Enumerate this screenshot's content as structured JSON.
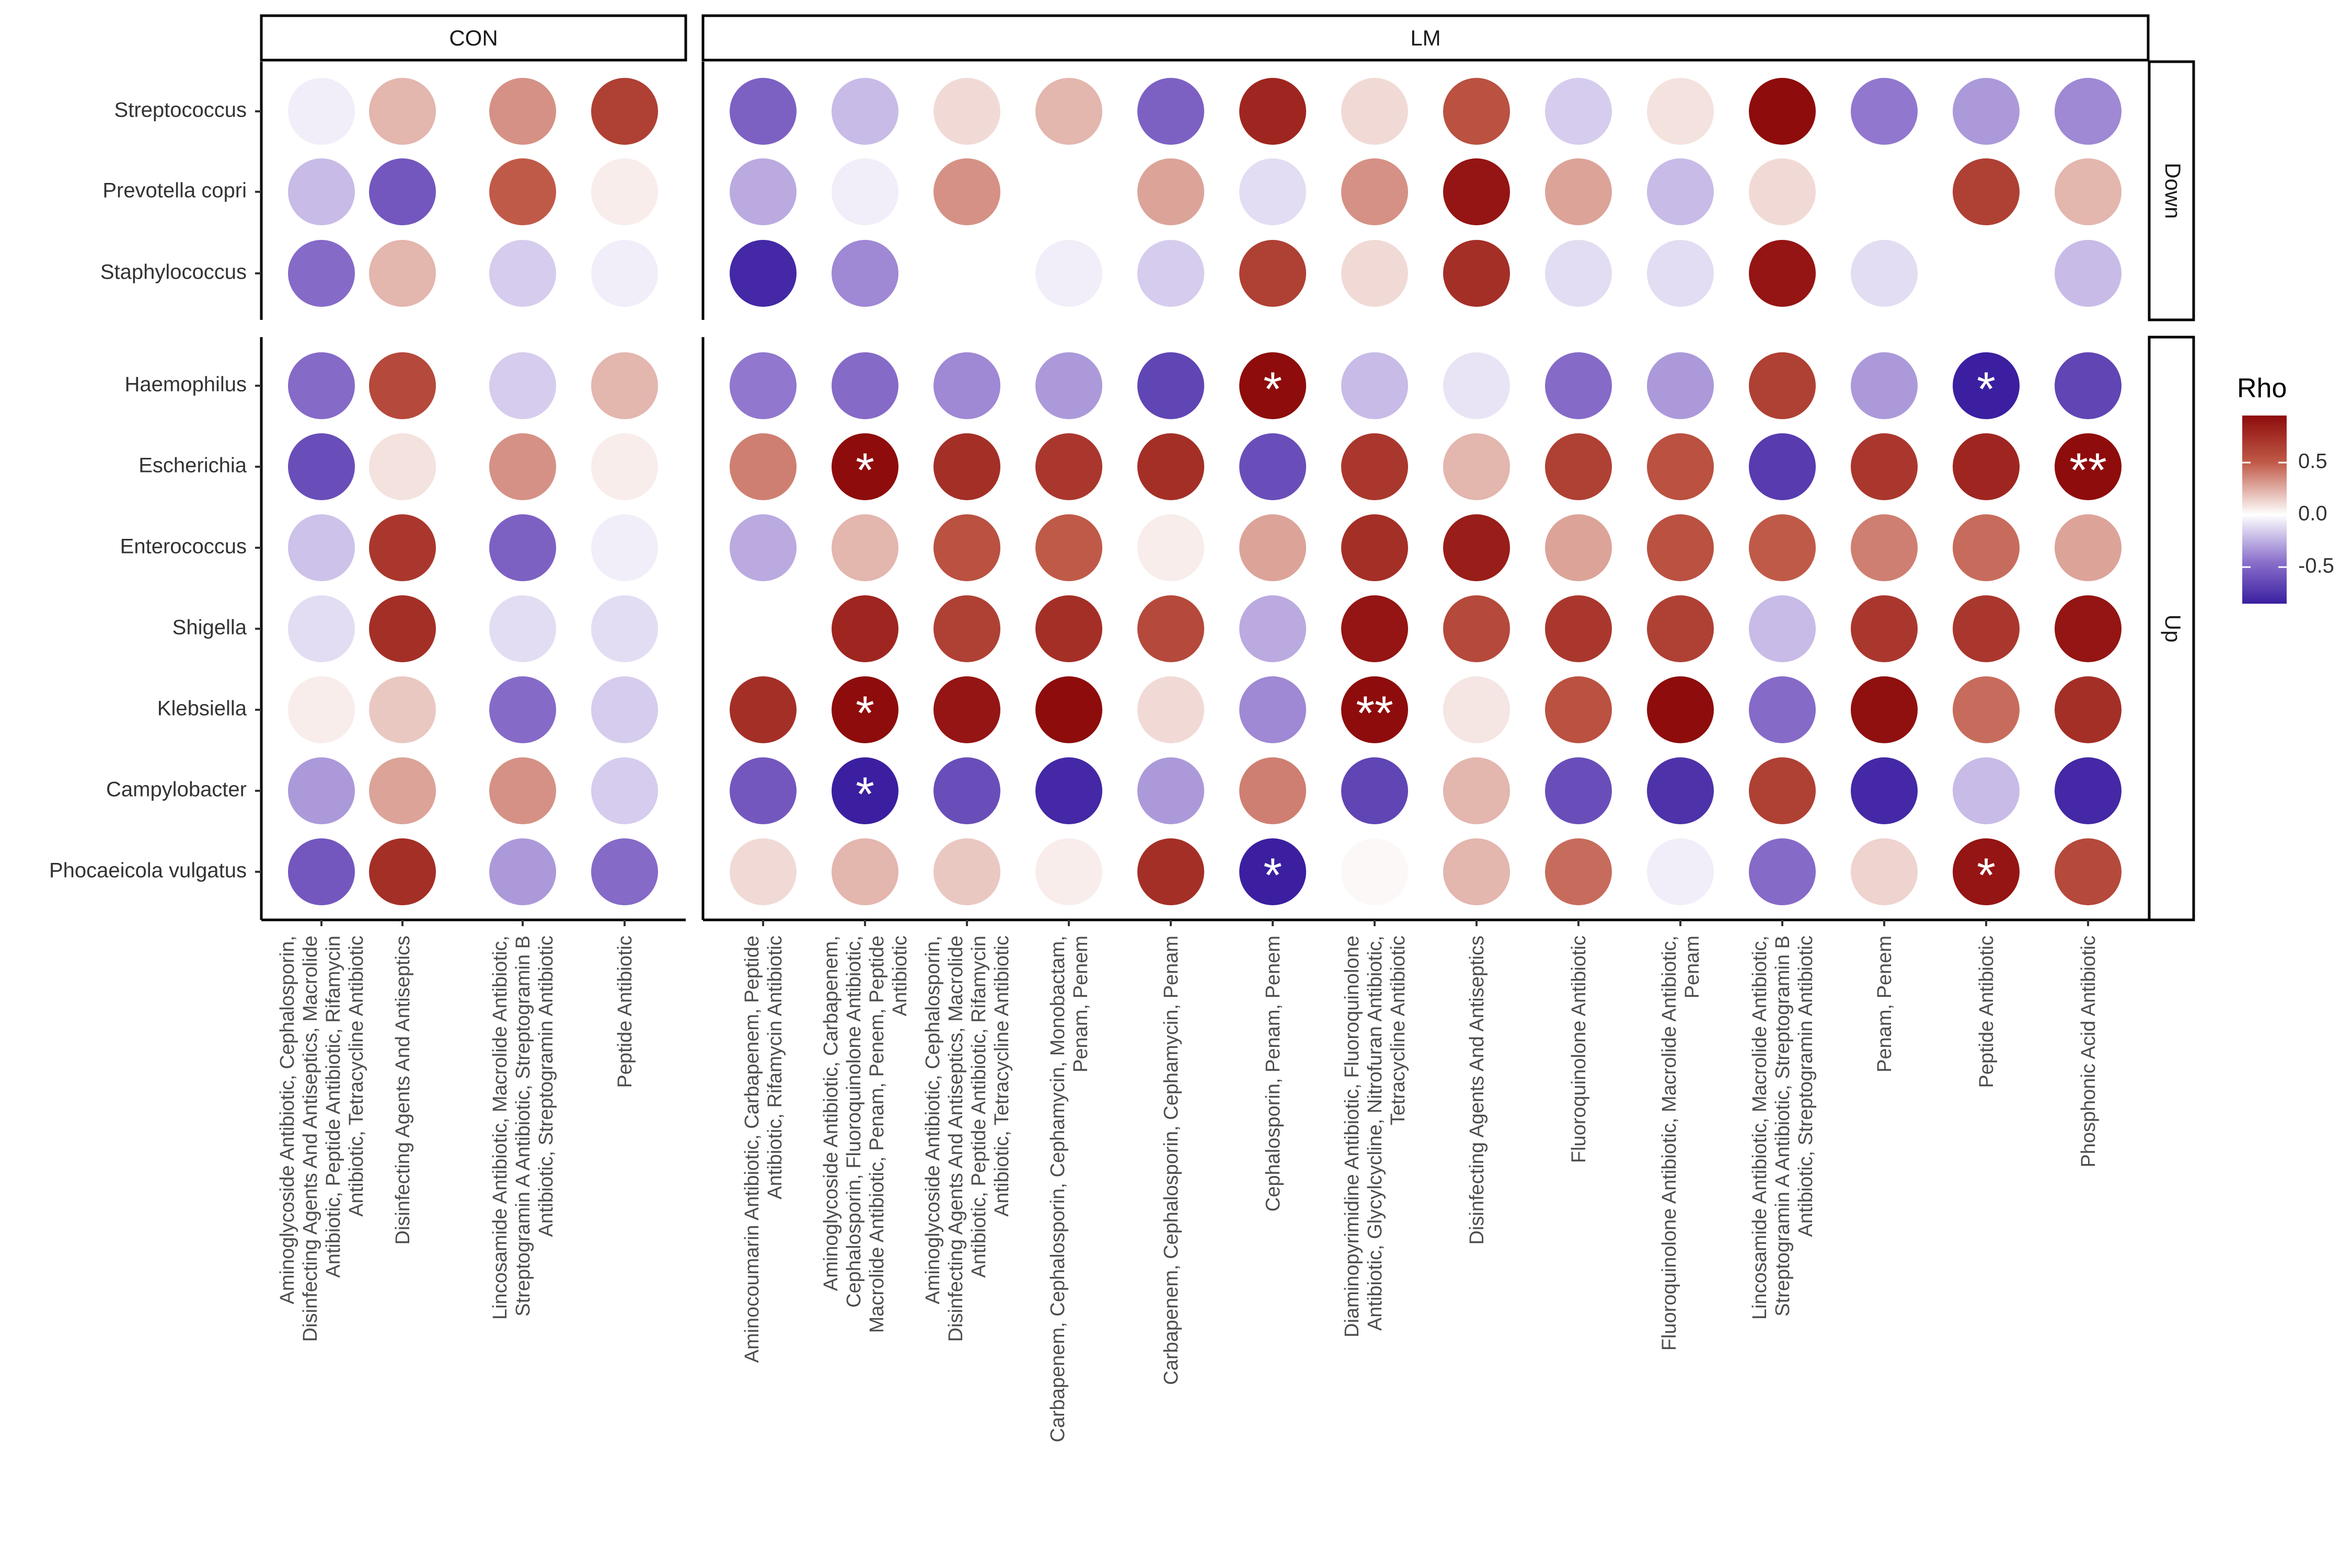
{
  "chart_data": {
    "type": "heatmap",
    "title": "",
    "legend": {
      "title": "Rho",
      "ticks": [
        0.5,
        0.0,
        -0.5
      ],
      "tick_labels": [
        "0.5",
        "0.0",
        "-0.5"
      ],
      "range": [
        -0.85,
        0.95
      ],
      "placement": "right"
    },
    "color_scale": {
      "low": "#3b1fa0",
      "mid": "#ffffff",
      "high": "#8e0c0c"
    },
    "facets_x": [
      {
        "label": "CON",
        "columns": [
          "Aminoglycoside Antibiotic, Cephalosporin,\nDisinfecting Agents And Antiseptics, Macrolide\nAntibiotic, Peptide Antibiotic, Rifamycin\nAntibiotic, Tetracycline Antibiotic",
          "Disinfecting Agents And Antiseptics",
          "Lincosamide Antibiotic, Macrolide Antibiotic,\nStreptogramin A Antibiotic, Streptogramin B\nAntibiotic, Streptogramin Antibiotic",
          "Peptide Antibiotic"
        ]
      },
      {
        "label": "LM",
        "columns": [
          "Aminocoumarin Antibiotic, Carbapenem, Peptide\nAntibiotic, Rifamycin Antibiotic",
          "Aminoglycoside Antibiotic, Carbapenem,\nCephalosporin, Fluoroquinolone Antibiotic,\nMacrolide Antibiotic, Penam, Penem, Peptide\nAntibiotic",
          "Aminoglycoside Antibiotic, Cephalosporin,\nDisinfecting Agents And Antiseptics, Macrolide\nAntibiotic, Peptide Antibiotic, Rifamycin\nAntibiotic, Tetracycline Antibiotic",
          "Carbapenem, Cephalosporin, Cephamycin, Monobactam,\nPenam, Penem",
          "Carbapenem, Cephalosporin, Cephamycin, Penam",
          "Cephalosporin, Penam, Penem",
          "Diaminopyrimidine Antibiotic, Fluoroquinolone\nAntibiotic, Glycylcycline, Nitrofuran Antibiotic,\nTetracycline Antibiotic",
          "Disinfecting Agents And Antiseptics",
          "Fluoroquinolone Antibiotic",
          "Fluoroquinolone Antibiotic, Macrolide Antibiotic,\nPenam",
          "Lincosamide Antibiotic, Macrolide Antibiotic,\nStreptogramin A Antibiotic, Streptogramin B\nAntibiotic, Streptogramin Antibiotic",
          "Penam, Penem",
          "Peptide Antibiotic",
          "Phosphonic Acid Antibiotic"
        ]
      }
    ],
    "facets_y": [
      {
        "label": "Down",
        "rows": [
          "Streptococcus",
          "Prevotella copri",
          "Staphylococcus"
        ]
      },
      {
        "label": "Up",
        "rows": [
          "Haemophilus",
          "Escherichia",
          "Enterococcus",
          "Shigella",
          "Klebsiella",
          "Campylobacter",
          "Phocaeicola vulgatus"
        ]
      }
    ],
    "values": {
      "CON": [
        [
          -0.05,
          0.2,
          0.3,
          0.6
        ],
        [
          -0.2,
          -0.55,
          0.45,
          0.05
        ],
        [
          -0.45,
          0.2,
          -0.15,
          -0.05
        ],
        [
          -0.45,
          0.55,
          -0.15,
          0.2
        ],
        [
          -0.6,
          0.08,
          0.3,
          0.05
        ],
        [
          -0.18,
          0.65,
          -0.5,
          -0.05
        ],
        [
          -0.1,
          0.7,
          -0.1,
          -0.1
        ],
        [
          0.05,
          0.15,
          -0.45,
          -0.15
        ],
        [
          -0.3,
          0.25,
          0.3,
          -0.15
        ],
        [
          -0.55,
          0.7,
          -0.3,
          -0.45
        ]
      ],
      "LM": [
        [
          -0.5,
          -0.2,
          0.1,
          0.2,
          -0.5,
          0.75,
          0.1,
          0.5,
          -0.15,
          0.08,
          0.9,
          -0.4,
          -0.3,
          -0.35
        ],
        [
          -0.25,
          -0.05,
          0.3,
          0.0,
          0.25,
          -0.1,
          0.3,
          0.85,
          0.25,
          -0.2,
          0.1,
          0.0,
          0.6,
          0.2
        ],
        [
          -0.8,
          -0.35,
          0.0,
          -0.05,
          -0.15,
          0.6,
          0.1,
          0.7,
          -0.1,
          -0.1,
          0.85,
          -0.1,
          0.0,
          -0.2
        ],
        [
          -0.4,
          -0.45,
          -0.35,
          -0.3,
          -0.65,
          0.9,
          -0.2,
          -0.08,
          -0.45,
          -0.3,
          0.6,
          -0.3,
          -0.85,
          -0.65
        ],
        [
          0.35,
          0.92,
          0.7,
          0.65,
          0.7,
          -0.6,
          0.65,
          0.2,
          0.6,
          0.5,
          -0.7,
          0.65,
          0.75,
          0.95
        ],
        [
          -0.25,
          0.2,
          0.5,
          0.45,
          0.05,
          0.25,
          0.7,
          0.8,
          0.25,
          0.5,
          0.45,
          0.35,
          0.4,
          0.25
        ],
        [
          0.0,
          0.75,
          0.6,
          0.7,
          0.55,
          -0.25,
          0.85,
          0.55,
          0.65,
          0.6,
          -0.2,
          0.65,
          0.65,
          0.85
        ],
        [
          0.7,
          0.9,
          0.85,
          0.9,
          0.1,
          -0.35,
          0.92,
          0.07,
          0.5,
          0.9,
          -0.45,
          0.88,
          0.4,
          0.7
        ],
        [
          -0.55,
          -0.85,
          -0.6,
          -0.8,
          -0.3,
          0.35,
          -0.65,
          0.2,
          -0.6,
          -0.75,
          0.6,
          -0.8,
          -0.2,
          -0.8
        ],
        [
          0.1,
          0.2,
          0.15,
          0.05,
          0.7,
          -0.85,
          0.02,
          0.2,
          0.4,
          -0.05,
          -0.45,
          0.12,
          0.85,
          0.55
        ]
      ]
    },
    "significance": {
      "LM": [
        [
          "",
          "",
          "",
          "",
          "",
          "",
          "",
          "",
          "",
          "",
          "",
          "",
          "",
          ""
        ],
        [
          "",
          "",
          "",
          "",
          "",
          "",
          "",
          "",
          "",
          "",
          "",
          "",
          "",
          ""
        ],
        [
          "",
          "",
          "",
          "",
          "",
          "",
          "",
          "",
          "",
          "",
          "",
          "",
          "",
          ""
        ],
        [
          "",
          "",
          "",
          "",
          "",
          "*",
          "",
          "",
          "",
          "",
          "",
          "",
          "*",
          ""
        ],
        [
          "",
          "*",
          "",
          "",
          "",
          "",
          "",
          "",
          "",
          "",
          "",
          "",
          "",
          "**"
        ],
        [
          "",
          "",
          "",
          "",
          "",
          "",
          "",
          "",
          "",
          "",
          "",
          "",
          "",
          ""
        ],
        [
          "",
          "",
          "",
          "",
          "",
          "",
          "",
          "",
          "",
          "",
          "",
          "",
          "",
          ""
        ],
        [
          "",
          "*",
          "",
          "",
          "",
          "",
          "**",
          "",
          "",
          "",
          "",
          "",
          "",
          ""
        ],
        [
          "",
          "*",
          "",
          "",
          "",
          "",
          "",
          "",
          "",
          "",
          "",
          "",
          "",
          ""
        ],
        [
          "",
          "",
          "",
          "",
          "",
          "*",
          "",
          "",
          "",
          "",
          "",
          "",
          "*",
          ""
        ]
      ]
    }
  }
}
